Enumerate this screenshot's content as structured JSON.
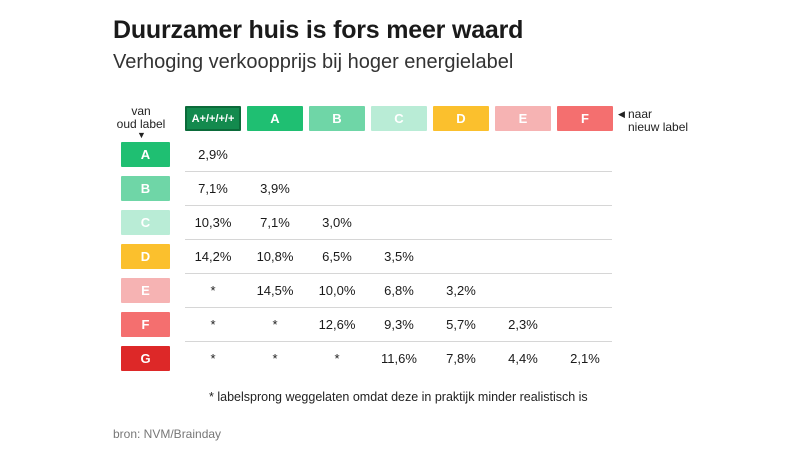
{
  "title": "Duurzamer huis is fors meer waard",
  "subtitle": "Verhoging verkoopprijs bij hoger energielabel",
  "from_label": [
    "van",
    "oud label"
  ],
  "to_label": [
    "naar",
    "nieuw label"
  ],
  "arrow_down": "▼",
  "arrow_left": "◀",
  "footnote": "* labelsprong weggelaten omdat deze in praktijk minder realistisch is",
  "source": "bron: NVM/Brainday",
  "chart_data": {
    "type": "table",
    "columns": [
      "A+/+/+/+",
      "A",
      "B",
      "C",
      "D",
      "E",
      "F"
    ],
    "rows": [
      "A",
      "B",
      "C",
      "D",
      "E",
      "F",
      "G"
    ],
    "values": [
      [
        "2,9%",
        "",
        "",
        "",
        "",
        "",
        ""
      ],
      [
        "7,1%",
        "3,9%",
        "",
        "",
        "",
        "",
        ""
      ],
      [
        "10,3%",
        "7,1%",
        "3,0%",
        "",
        "",
        "",
        ""
      ],
      [
        "14,2%",
        "10,8%",
        "6,5%",
        "3,5%",
        "",
        "",
        ""
      ],
      [
        "*",
        "14,5%",
        "10,0%",
        "6,8%",
        "3,2%",
        "",
        ""
      ],
      [
        "*",
        "*",
        "12,6%",
        "9,3%",
        "5,7%",
        "2,3%",
        ""
      ],
      [
        "*",
        "*",
        "*",
        "11,6%",
        "7,8%",
        "4,4%",
        "2,1%"
      ]
    ],
    "label_colors": {
      "A+/+/+/+": "#138a4e",
      "A": "#1fbf72",
      "B": "#6fd6a7",
      "C": "#b9ecd6",
      "D": "#fbc02d",
      "E": "#f6b3b3",
      "F": "#f46f6f",
      "G": "#dd2828"
    }
  }
}
